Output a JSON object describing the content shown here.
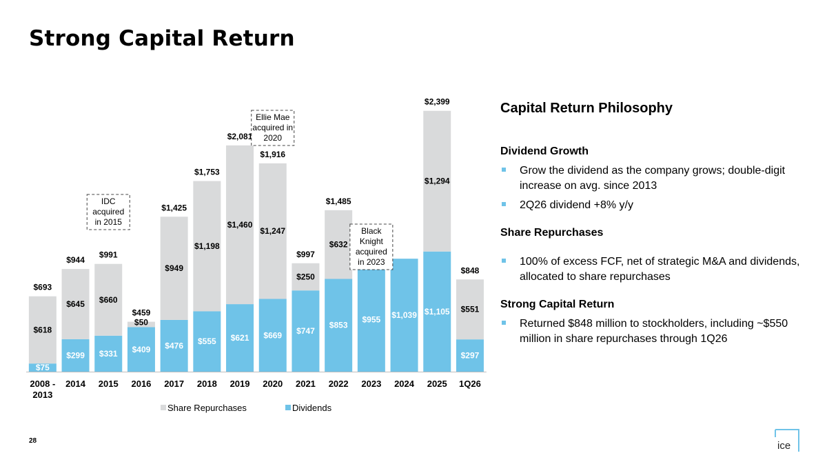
{
  "title": "Strong Capital Return",
  "page_number": "28",
  "logo_text": "ICE",
  "colors": {
    "repurchases": "#d9dadb",
    "dividends": "#6fc3e8",
    "bullet": "#6fc3e8"
  },
  "chart_data": {
    "type": "bar",
    "stacked": true,
    "categories": [
      "2008 - 2013",
      "2014",
      "2015",
      "2016",
      "2017",
      "2018",
      "2019",
      "2020",
      "2021",
      "2022",
      "2023",
      "2024",
      "2025",
      "1Q26"
    ],
    "series": [
      {
        "name": "Dividends",
        "values": [
          75,
          299,
          331,
          409,
          476,
          555,
          621,
          669,
          747,
          853,
          955,
          1039,
          1105,
          297
        ],
        "labels": [
          "$75",
          "$299",
          "$331",
          "$409",
          "$476",
          "$555",
          "$621",
          "$669",
          "$747",
          "$853",
          "$955",
          "$1,039",
          "$1,105",
          "$297"
        ]
      },
      {
        "name": "Share Repurchases",
        "values": [
          618,
          645,
          660,
          50,
          949,
          1198,
          1460,
          1247,
          250,
          632,
          0,
          0,
          1294,
          551
        ],
        "labels": [
          "$618",
          "$645",
          "$660",
          "$50",
          "$949",
          "$1,198",
          "$1,460",
          "$1,247",
          "$250",
          "$632",
          "",
          "",
          "$1,294",
          "$551"
        ]
      }
    ],
    "totals": [
      "$693",
      "$944",
      "$991",
      "$459",
      "$1,425",
      "$1,753",
      "$2,081",
      "$1,916",
      "$997",
      "$1,485",
      "",
      "",
      "$2,399",
      "$848"
    ],
    "ylim": [
      0,
      2600
    ],
    "legend": [
      "Share Repurchases",
      "Dividends"
    ],
    "legend_position": "bottom",
    "annotations": [
      {
        "text": [
          "IDC",
          "acquired",
          "in 2015"
        ],
        "category": "2015"
      },
      {
        "text": [
          "Ellie Mae",
          "acquired in",
          "2020"
        ],
        "category": "2020"
      },
      {
        "text": [
          "Black",
          "Knight",
          "acquired",
          "in 2023"
        ],
        "category": "2023"
      }
    ]
  },
  "philosophy": {
    "heading": "Capital Return Philosophy",
    "sections": [
      {
        "title": "Dividend Growth",
        "items": [
          "Grow the dividend as the company grows; double-digit increase on avg. since 2013",
          "2Q26 dividend +8% y/y"
        ]
      },
      {
        "title": "Share Repurchases",
        "items": [
          "100% of excess FCF, net of strategic M&A and dividends, allocated to share repurchases"
        ]
      },
      {
        "title": "Strong Capital Return",
        "items": [
          "Returned $848 million to stockholders, including ~$550 million in share repurchases through 1Q26"
        ]
      }
    ]
  }
}
